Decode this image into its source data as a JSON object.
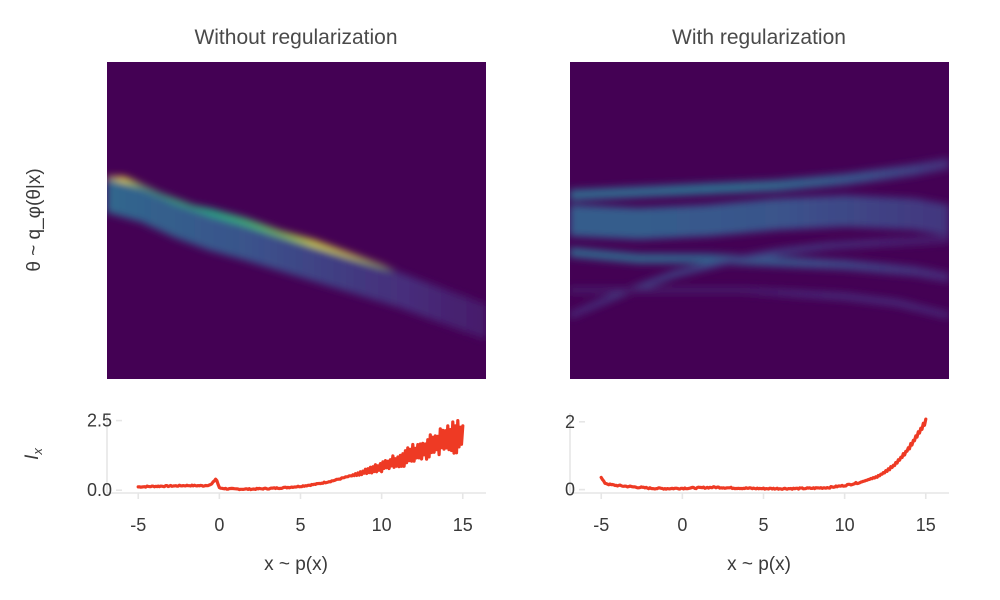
{
  "colors": {
    "heatmap_background": "#440154",
    "line": "#EE3A24",
    "axis": "#e6e6e6",
    "text": "#3a3a3a"
  },
  "chart_data": [
    {
      "type": "heatmap",
      "title": "Without regularization",
      "xlabel": "",
      "ylabel": "θ ~ q_φ(θ|x)",
      "colormap": "viridis",
      "xlim": [
        -6,
        16
      ],
      "bands": [
        {
          "x": [
            -6,
            -5,
            -3,
            -1,
            0,
            2,
            4,
            6,
            8,
            10,
            12,
            14,
            16
          ],
          "y": [
            0.62,
            0.62,
            0.57,
            0.53,
            0.52,
            0.49,
            0.45,
            0.42,
            0.38,
            0.34,
            0.29,
            0.25,
            0.21
          ],
          "width": 0.035,
          "intensity": [
            0.99,
            0.99,
            0.72,
            0.66,
            0.62,
            0.68,
            0.82,
            0.96,
            0.97,
            0.9,
            0.82,
            0.82,
            0.82
          ]
        },
        {
          "x": [
            -6,
            -4,
            -2,
            0,
            2,
            4,
            6,
            8,
            10,
            12,
            14,
            16
          ],
          "y": [
            0.6,
            0.58,
            0.54,
            0.49,
            0.46,
            0.43,
            0.39,
            0.35,
            0.3,
            0.25,
            0.2,
            0.15
          ],
          "width": 0.035,
          "intensity": [
            0.75,
            0.72,
            0.68,
            0.64,
            0.66,
            0.72,
            0.76,
            0.8,
            0.82,
            0.82,
            0.82,
            0.82
          ]
        },
        {
          "x": [
            -6,
            -4,
            -2,
            0,
            2,
            5,
            8,
            11,
            14,
            16
          ],
          "y": [
            0.58,
            0.55,
            0.5,
            0.46,
            0.43,
            0.38,
            0.33,
            0.28,
            0.22,
            0.18
          ],
          "width": 0.11,
          "intensity": [
            0.34,
            0.32,
            0.3,
            0.28,
            0.26,
            0.22,
            0.18,
            0.14,
            0.1,
            0.08
          ]
        }
      ]
    },
    {
      "type": "line",
      "xlabel": "x ~ p(x)",
      "ylabel": "I_x",
      "xlim": [
        -6,
        16
      ],
      "ylim": [
        -0.1,
        2.7
      ],
      "xticks": [
        "-5",
        "0",
        "5",
        "10",
        "15"
      ],
      "yticks": [
        "0.0",
        "2.5"
      ],
      "series": [
        {
          "x": [
            -5,
            -4,
            -3,
            -2,
            -1,
            -0.5,
            -0.2,
            0,
            0.5,
            1,
            2,
            3,
            4,
            5,
            6,
            7,
            8,
            9,
            10,
            11,
            12,
            12.5,
            13,
            13.5,
            14,
            14.5,
            15
          ],
          "y": [
            0.12,
            0.14,
            0.15,
            0.17,
            0.16,
            0.2,
            0.42,
            0.08,
            0.05,
            0.04,
            0.04,
            0.06,
            0.09,
            0.14,
            0.22,
            0.34,
            0.5,
            0.66,
            0.85,
            1.05,
            1.32,
            1.42,
            1.55,
            1.7,
            1.82,
            1.92,
            2.0
          ],
          "noise_from_x": 8,
          "noise_amplitude_end": 0.65
        }
      ]
    },
    {
      "type": "heatmap",
      "title": "With regularization",
      "xlabel": "",
      "ylabel": "",
      "colormap": "viridis",
      "xlim": [
        -6,
        16
      ],
      "bands": [
        {
          "x": [
            -6,
            -4,
            -2,
            0,
            2,
            4,
            6,
            8,
            10,
            12,
            14,
            16
          ],
          "y": [
            0.49,
            0.5,
            0.51,
            0.5,
            0.52,
            0.53,
            0.55,
            0.55,
            0.54,
            0.52,
            0.5,
            0.48
          ],
          "width": 0.028,
          "intensity": [
            0.8,
            0.83,
            0.82,
            0.76,
            0.82,
            0.88,
            0.96,
            0.99,
            0.99,
            0.99,
            0.99,
            0.97
          ]
        },
        {
          "x": [
            -6,
            -2,
            2,
            6,
            10,
            14,
            16
          ],
          "y": [
            0.58,
            0.59,
            0.6,
            0.61,
            0.63,
            0.66,
            0.68
          ],
          "width": 0.035,
          "intensity": [
            0.34,
            0.34,
            0.36,
            0.34,
            0.28,
            0.2,
            0.14
          ]
        },
        {
          "x": [
            -6,
            -2,
            2,
            6,
            10,
            14,
            16
          ],
          "y": [
            0.4,
            0.38,
            0.38,
            0.37,
            0.36,
            0.34,
            0.32
          ],
          "width": 0.03,
          "intensity": [
            0.34,
            0.34,
            0.32,
            0.28,
            0.22,
            0.16,
            0.12
          ]
        },
        {
          "x": [
            -6,
            -3,
            0,
            3,
            6,
            9,
            12,
            16
          ],
          "y": [
            0.2,
            0.27,
            0.33,
            0.37,
            0.4,
            0.42,
            0.43,
            0.44
          ],
          "width": 0.02,
          "intensity": [
            0.12,
            0.18,
            0.22,
            0.22,
            0.2,
            0.16,
            0.13,
            0.1
          ]
        },
        {
          "x": [
            4,
            7,
            10,
            13,
            16
          ],
          "y": [
            0.28,
            0.27,
            0.26,
            0.24,
            0.2
          ],
          "width": 0.02,
          "intensity": [
            0.08,
            0.12,
            0.14,
            0.14,
            0.12
          ]
        },
        {
          "x": [
            -6,
            -2,
            2,
            6,
            10,
            14,
            16
          ],
          "y": [
            0.5,
            0.49,
            0.5,
            0.52,
            0.53,
            0.52,
            0.5
          ],
          "width": 0.1,
          "intensity": [
            0.3,
            0.3,
            0.28,
            0.26,
            0.22,
            0.18,
            0.16
          ]
        }
      ]
    },
    {
      "type": "line",
      "xlabel": "x ~ p(x)",
      "ylabel": "",
      "xlim": [
        -6,
        16
      ],
      "ylim": [
        -0.1,
        2.2
      ],
      "xticks": [
        "-5",
        "0",
        "5",
        "10",
        "15"
      ],
      "yticks": [
        "0",
        "2"
      ],
      "series": [
        {
          "x": [
            -5,
            -4.8,
            -4.5,
            -4,
            -3,
            -2,
            -1,
            0,
            1,
            2,
            3,
            4,
            5,
            6,
            7,
            8,
            9,
            10,
            11,
            12,
            12.5,
            13,
            13.5,
            14,
            14.5,
            15
          ],
          "y": [
            0.35,
            0.2,
            0.15,
            0.12,
            0.08,
            0.04,
            0.03,
            0.04,
            0.05,
            0.07,
            0.05,
            0.04,
            0.03,
            0.03,
            0.03,
            0.04,
            0.06,
            0.12,
            0.22,
            0.38,
            0.52,
            0.7,
            0.95,
            1.25,
            1.62,
            2.02
          ],
          "noise_from_x": 11,
          "noise_amplitude_end": 0.07
        }
      ]
    }
  ]
}
